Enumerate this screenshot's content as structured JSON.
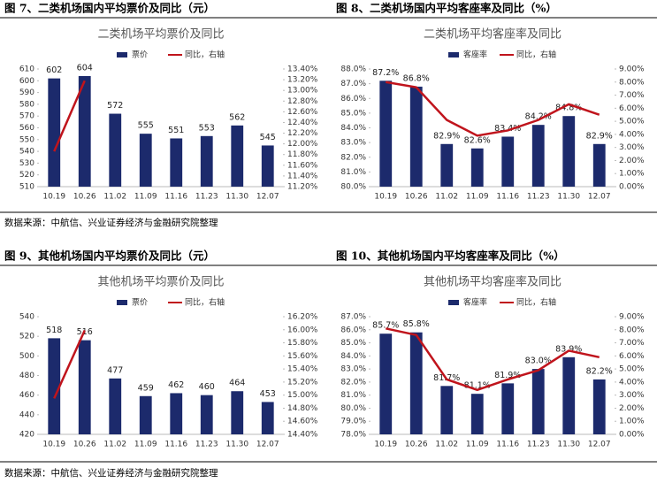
{
  "captions": [
    "图 7、二类机场国内平均票价及同比（元）",
    "图 8、二类机场国内平均客座率及同比（%）",
    "图 9、其他机场国内平均票价及同比（元）",
    "图 10、其他机场国内平均客座率及同比（%）"
  ],
  "sources": [
    "数据来源：中航信、兴业证券经济与金融研究院整理",
    "数据来源：中航信、兴业证券经济与金融研究院整理"
  ],
  "chart_data": [
    {
      "type": "bar",
      "title": "二类机场平均票价及同比",
      "categories": [
        "10.19",
        "10.26",
        "11.02",
        "11.09",
        "11.16",
        "11.23",
        "11.30",
        "12.07"
      ],
      "series": [
        {
          "name": "票价",
          "color": "#1c2a6c",
          "values": [
            602,
            604,
            572,
            555,
            551,
            553,
            562,
            545
          ]
        },
        {
          "name": "同比，右轴",
          "color": "#c0141c",
          "axis": "y2",
          "values": [
            11.86,
            13.18,
            null,
            null,
            null,
            null,
            null,
            null
          ]
        }
      ],
      "ylim": [
        510,
        610
      ],
      "yticks": [
        510,
        520,
        530,
        540,
        550,
        560,
        570,
        580,
        590,
        600,
        610
      ],
      "y2lim": [
        11.2,
        13.4
      ],
      "y2ticks": [
        {
          "value": 11.2,
          "label": "11.20%"
        },
        {
          "value": 11.4,
          "label": "11.40%"
        },
        {
          "value": 11.6,
          "label": "11.60%"
        },
        {
          "value": 11.8,
          "label": "11.80%"
        },
        {
          "value": 12.0,
          "label": "12.00%"
        },
        {
          "value": 12.2,
          "label": "12.20%"
        },
        {
          "value": 12.4,
          "label": "12.40%"
        },
        {
          "value": 12.6,
          "label": "12.60%"
        },
        {
          "value": 12.8,
          "label": "12.80%"
        },
        {
          "value": 13.0,
          "label": "13.00%"
        },
        {
          "value": 13.2,
          "label": "13.20%"
        },
        {
          "value": 13.4,
          "label": "13.40%"
        }
      ]
    },
    {
      "type": "bar",
      "title": "二类机场平均客座率及同比",
      "categories": [
        "10.19",
        "10.26",
        "11.02",
        "11.09",
        "11.16",
        "11.23",
        "11.30",
        "12.07"
      ],
      "series": [
        {
          "name": "客座率",
          "color": "#1c2a6c",
          "values": [
            87.2,
            86.8,
            82.9,
            82.6,
            83.4,
            84.2,
            84.8,
            82.9
          ],
          "value_labels": [
            "87.2%",
            "86.8%",
            "82.9%",
            "82.6%",
            "83.4%",
            "84.2%",
            "84.8%",
            "82.9%"
          ]
        },
        {
          "name": "同比，右轴",
          "color": "#c0141c",
          "axis": "y2",
          "values": [
            8.0,
            7.6,
            5.1,
            3.9,
            4.3,
            5.1,
            6.3,
            5.5
          ]
        }
      ],
      "ylim": [
        80,
        88
      ],
      "yticks": [
        {
          "value": 80,
          "label": "80.0%"
        },
        {
          "value": 81,
          "label": "81.0%"
        },
        {
          "value": 82,
          "label": "82.0%"
        },
        {
          "value": 83,
          "label": "83.0%"
        },
        {
          "value": 84,
          "label": "84.0%"
        },
        {
          "value": 85,
          "label": "85.0%"
        },
        {
          "value": 86,
          "label": "86.0%"
        },
        {
          "value": 87,
          "label": "87.0%"
        },
        {
          "value": 88,
          "label": "88.0%"
        }
      ],
      "y2lim": [
        0,
        9
      ],
      "y2ticks": [
        {
          "value": 0,
          "label": "0.00%"
        },
        {
          "value": 1,
          "label": "1.00%"
        },
        {
          "value": 2,
          "label": "2.00%"
        },
        {
          "value": 3,
          "label": "3.00%"
        },
        {
          "value": 4,
          "label": "4.00%"
        },
        {
          "value": 5,
          "label": "5.00%"
        },
        {
          "value": 6,
          "label": "6.00%"
        },
        {
          "value": 7,
          "label": "7.00%"
        },
        {
          "value": 8,
          "label": "8.00%"
        },
        {
          "value": 9,
          "label": "9.00%"
        }
      ]
    },
    {
      "type": "bar",
      "title": "其他机场平均票价及同比",
      "categories": [
        "10.19",
        "10.26",
        "11.02",
        "11.09",
        "11.16",
        "11.23",
        "11.30",
        "12.07"
      ],
      "series": [
        {
          "name": "票价",
          "color": "#1c2a6c",
          "values": [
            518,
            516,
            477,
            459,
            462,
            460,
            464,
            453
          ]
        },
        {
          "name": "同比，右轴",
          "color": "#c0141c",
          "axis": "y2",
          "values": [
            14.95,
            15.99,
            null,
            null,
            null,
            null,
            null,
            null
          ]
        }
      ],
      "ylim": [
        420,
        540
      ],
      "yticks": [
        420,
        440,
        460,
        480,
        500,
        520,
        540
      ],
      "y2lim": [
        14.4,
        16.2
      ],
      "y2ticks": [
        {
          "value": 14.4,
          "label": "14.40%"
        },
        {
          "value": 14.6,
          "label": "14.60%"
        },
        {
          "value": 14.8,
          "label": "14.80%"
        },
        {
          "value": 15.0,
          "label": "15.00%"
        },
        {
          "value": 15.2,
          "label": "15.20%"
        },
        {
          "value": 15.4,
          "label": "15.40%"
        },
        {
          "value": 15.6,
          "label": "15.60%"
        },
        {
          "value": 15.8,
          "label": "15.80%"
        },
        {
          "value": 16.0,
          "label": "16.00%"
        },
        {
          "value": 16.2,
          "label": "16.20%"
        }
      ]
    },
    {
      "type": "bar",
      "title": "其他机场平均客座率及同比",
      "categories": [
        "10.19",
        "10.26",
        "11.02",
        "11.09",
        "11.16",
        "11.23",
        "11.30",
        "12.07"
      ],
      "series": [
        {
          "name": "客座率",
          "color": "#1c2a6c",
          "values": [
            85.7,
            85.8,
            81.7,
            81.1,
            81.9,
            83.0,
            83.9,
            82.2
          ],
          "value_labels": [
            "85.7%",
            "85.8%",
            "81.7%",
            "81.1%",
            "81.9%",
            "83.0%",
            "83.9%",
            "82.2%"
          ]
        },
        {
          "name": "同比，右轴",
          "color": "#c0141c",
          "axis": "y2",
          "values": [
            8.1,
            7.6,
            4.2,
            3.4,
            4.2,
            4.9,
            6.4,
            5.9
          ]
        }
      ],
      "ylim": [
        78,
        87
      ],
      "yticks": [
        {
          "value": 78,
          "label": "78.0%"
        },
        {
          "value": 79,
          "label": "79.0%"
        },
        {
          "value": 80,
          "label": "80.0%"
        },
        {
          "value": 81,
          "label": "81.0%"
        },
        {
          "value": 82,
          "label": "82.0%"
        },
        {
          "value": 83,
          "label": "83.0%"
        },
        {
          "value": 84,
          "label": "84.0%"
        },
        {
          "value": 85,
          "label": "85.0%"
        },
        {
          "value": 86,
          "label": "86.0%"
        },
        {
          "value": 87,
          "label": "87.0%"
        }
      ],
      "y2lim": [
        0,
        9
      ],
      "y2ticks": [
        {
          "value": 0,
          "label": "0.00%"
        },
        {
          "value": 1,
          "label": "1.00%"
        },
        {
          "value": 2,
          "label": "2.00%"
        },
        {
          "value": 3,
          "label": "3.00%"
        },
        {
          "value": 4,
          "label": "4.00%"
        },
        {
          "value": 5,
          "label": "5.00%"
        },
        {
          "value": 6,
          "label": "6.00%"
        },
        {
          "value": 7,
          "label": "7.00%"
        },
        {
          "value": 8,
          "label": "8.00%"
        },
        {
          "value": 9,
          "label": "9.00%"
        }
      ]
    }
  ]
}
